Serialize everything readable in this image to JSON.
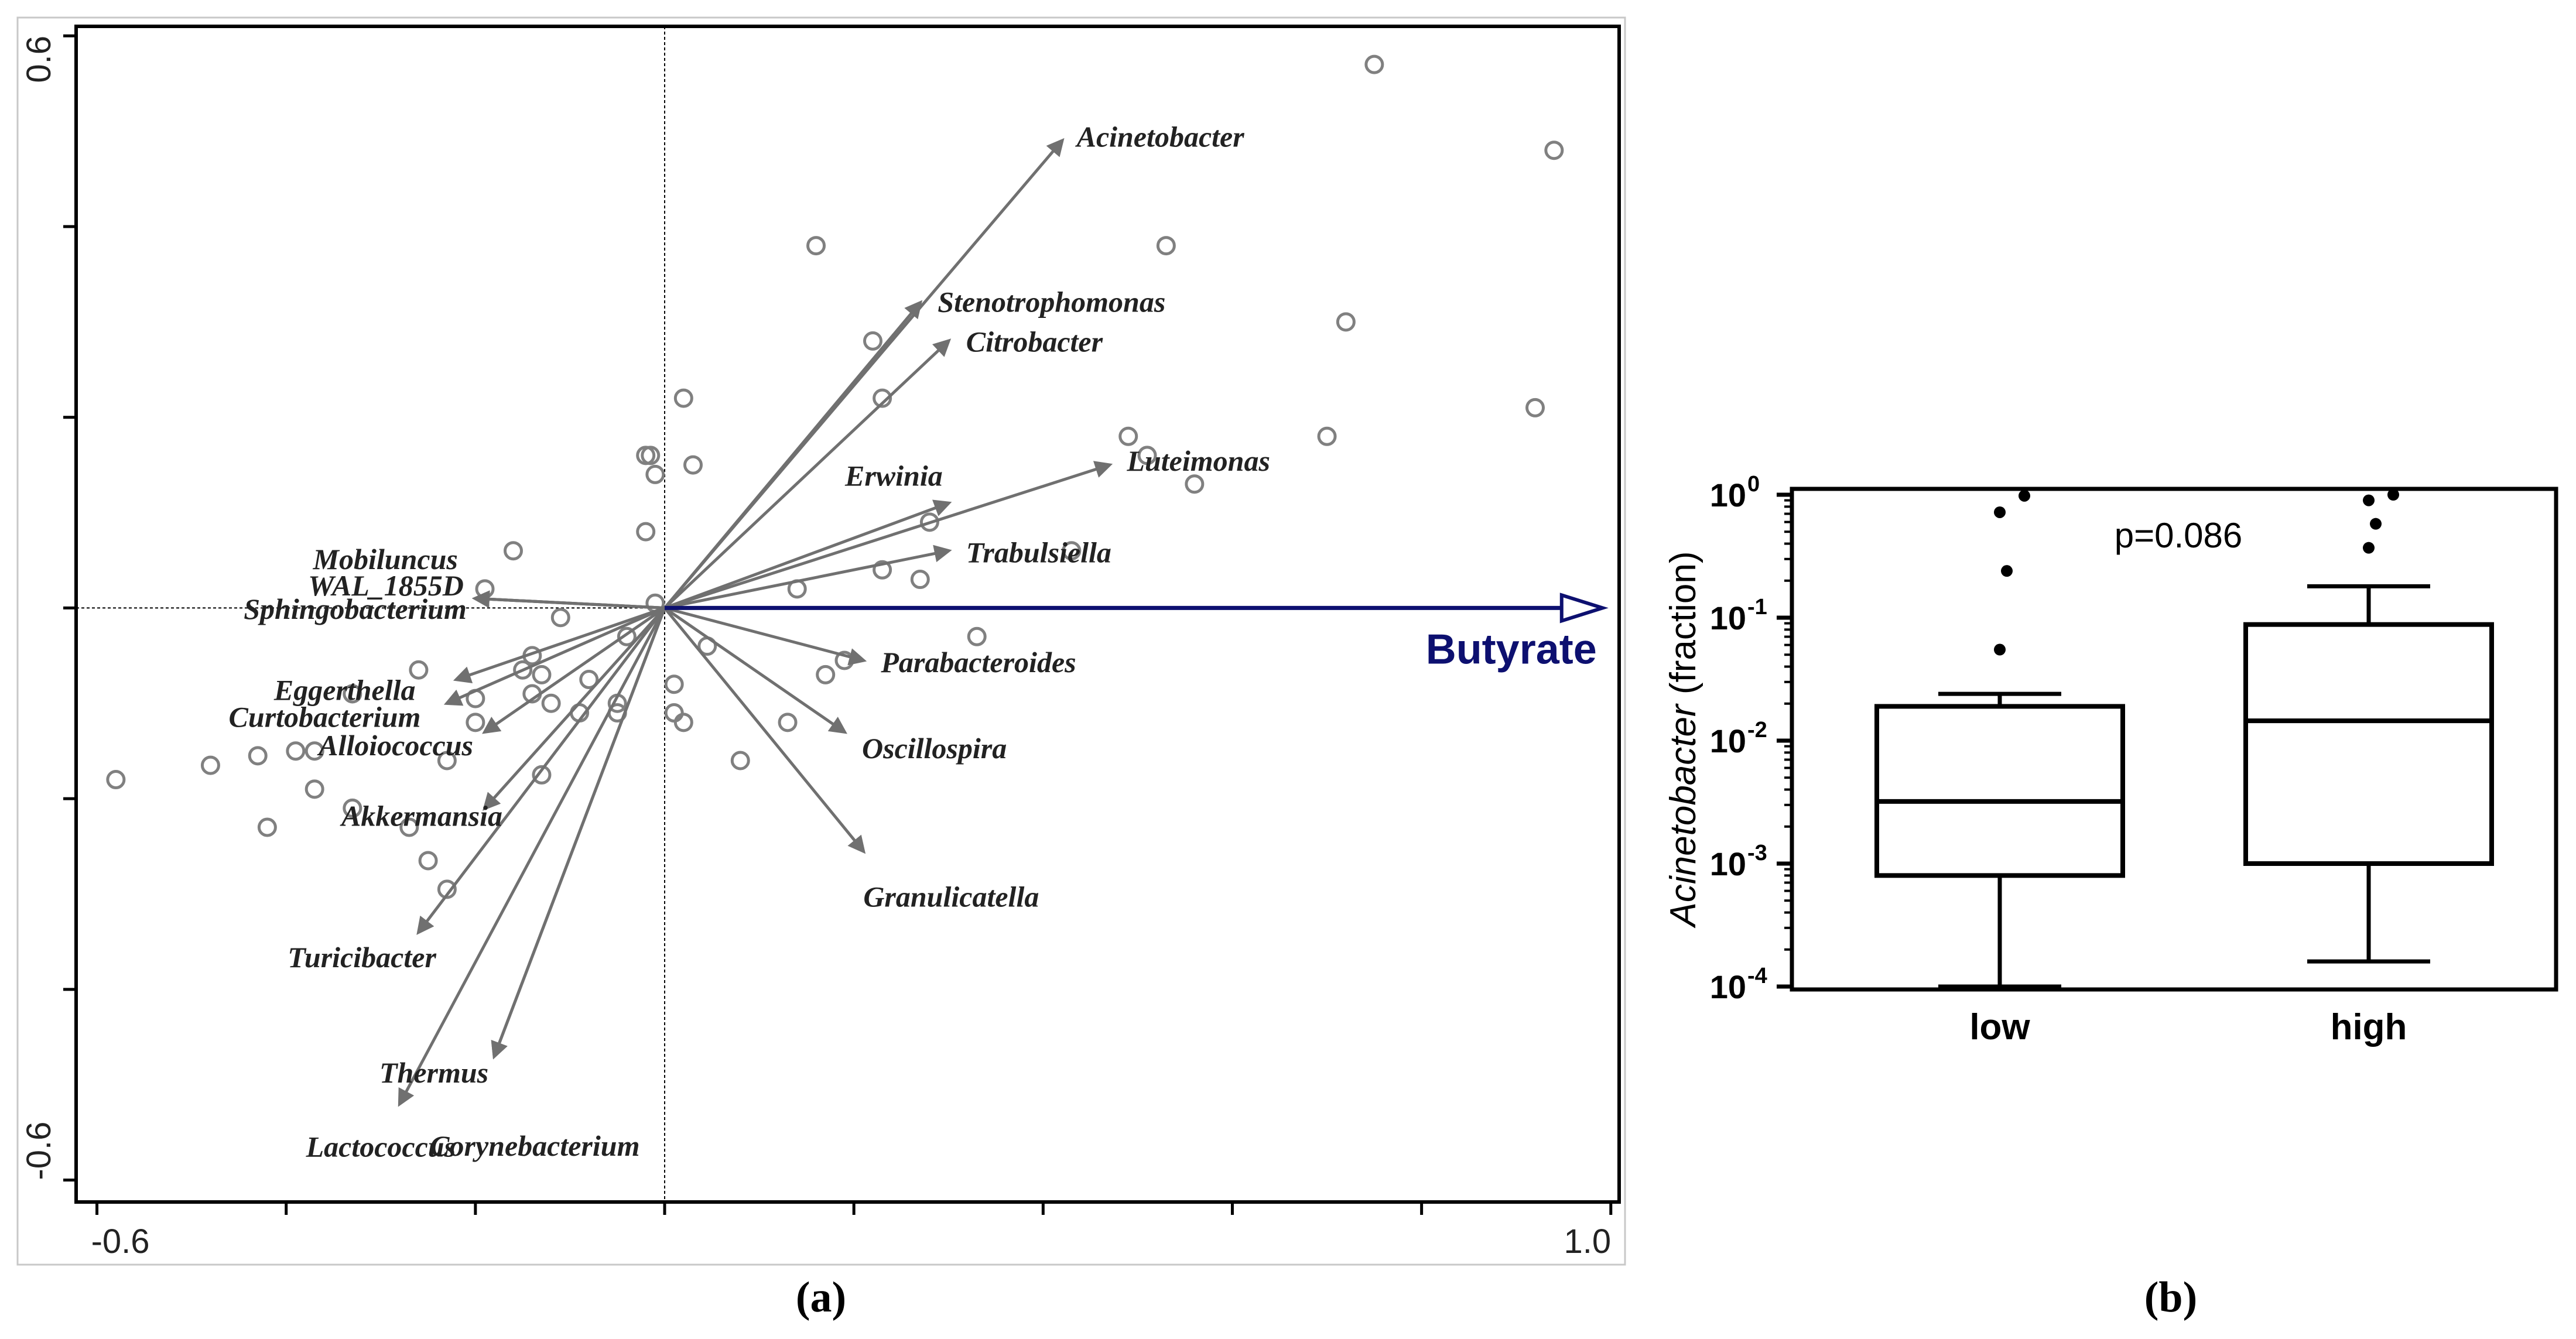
{
  "panel_labels": {
    "a": "(a)",
    "b": "(b)"
  },
  "chart_data": [
    {
      "type": "scatter",
      "subtype": "ordination-biplot",
      "xlim": [
        -0.6,
        1.0
      ],
      "ylim": [
        -0.6,
        0.6
      ],
      "x_tick_labels": [
        "-0.6",
        "1.0"
      ],
      "y_tick_labels": [
        "0.6",
        "-0.6"
      ],
      "environmental_vector": {
        "name": "Butyrate",
        "x": 1.0,
        "y": 0.0,
        "color": "#0d1070"
      },
      "arrow_color": "#707070",
      "species": [
        {
          "name": "Acinetobacter",
          "x": 0.42,
          "y": 0.49
        },
        {
          "name": "Stenotrophomonas",
          "x": 0.27,
          "y": 0.32
        },
        {
          "name": "Citrobacter",
          "x": 0.3,
          "y": 0.28
        },
        {
          "name": "Erwinia",
          "x": 0.3,
          "y": 0.11
        },
        {
          "name": "Luteimonas",
          "x": 0.47,
          "y": 0.15
        },
        {
          "name": "Trabulsiella",
          "x": 0.3,
          "y": 0.06
        },
        {
          "name": "Parabacteroides",
          "x": 0.21,
          "y": -0.055
        },
        {
          "name": "Oscillospira",
          "x": 0.19,
          "y": -0.13
        },
        {
          "name": "Granulicatella",
          "x": 0.21,
          "y": -0.255
        },
        {
          "name": "Mobiluncus",
          "x": -0.2,
          "y": 0.01
        },
        {
          "name": "WAL_1855D",
          "x": -0.2,
          "y": 0.01
        },
        {
          "name": "Sphingobacterium",
          "x": -0.2,
          "y": 0.01
        },
        {
          "name": "Eggerthella",
          "x": -0.22,
          "y": -0.075
        },
        {
          "name": "Curtobacterium",
          "x": -0.23,
          "y": -0.1
        },
        {
          "name": "Alloiococcus",
          "x": -0.19,
          "y": -0.13
        },
        {
          "name": "Akkermansia",
          "x": -0.19,
          "y": -0.21
        },
        {
          "name": "Turicibacter",
          "x": -0.26,
          "y": -0.34
        },
        {
          "name": "Thermus",
          "x": -0.18,
          "y": -0.47
        },
        {
          "name": "Corynebacterium",
          "x": -0.18,
          "y": -0.47
        },
        {
          "name": "Lactococcus",
          "x": -0.28,
          "y": -0.52
        }
      ],
      "samples": [
        [
          0.75,
          0.57
        ],
        [
          0.94,
          0.48
        ],
        [
          0.16,
          0.38
        ],
        [
          0.53,
          0.38
        ],
        [
          0.72,
          0.3
        ],
        [
          0.22,
          0.28
        ],
        [
          0.92,
          0.21
        ],
        [
          0.02,
          0.22
        ],
        [
          0.23,
          0.22
        ],
        [
          0.7,
          0.18
        ],
        [
          0.49,
          0.18
        ],
        [
          0.51,
          0.16
        ],
        [
          -0.02,
          0.16
        ],
        [
          -0.015,
          0.16
        ],
        [
          -0.01,
          0.14
        ],
        [
          0.03,
          0.15
        ],
        [
          0.56,
          0.13
        ],
        [
          0.28,
          0.09
        ],
        [
          0.43,
          0.06
        ],
        [
          -0.02,
          0.08
        ],
        [
          0.23,
          0.04
        ],
        [
          0.27,
          0.03
        ],
        [
          0.14,
          0.02
        ],
        [
          -0.16,
          0.06
        ],
        [
          -0.19,
          0.02
        ],
        [
          -0.01,
          0.005
        ],
        [
          -0.11,
          -0.01
        ],
        [
          -0.04,
          -0.03
        ],
        [
          -0.14,
          -0.05
        ],
        [
          0.045,
          -0.04
        ],
        [
          0.19,
          -0.055
        ],
        [
          0.33,
          -0.03
        ],
        [
          -0.26,
          -0.065
        ],
        [
          -0.13,
          -0.07
        ],
        [
          0.17,
          -0.07
        ],
        [
          -0.15,
          -0.065
        ],
        [
          -0.08,
          -0.075
        ],
        [
          0.01,
          -0.08
        ],
        [
          -0.14,
          -0.09
        ],
        [
          -0.33,
          -0.09
        ],
        [
          -0.2,
          -0.095
        ],
        [
          -0.12,
          -0.1
        ],
        [
          -0.05,
          -0.1
        ],
        [
          -0.05,
          -0.11
        ],
        [
          -0.09,
          -0.11
        ],
        [
          0.01,
          -0.11
        ],
        [
          -0.2,
          -0.12
        ],
        [
          0.02,
          -0.12
        ],
        [
          0.13,
          -0.12
        ],
        [
          -0.37,
          -0.15
        ],
        [
          -0.39,
          -0.15
        ],
        [
          -0.43,
          -0.155
        ],
        [
          -0.48,
          -0.165
        ],
        [
          -0.23,
          -0.16
        ],
        [
          0.08,
          -0.16
        ],
        [
          -0.58,
          -0.18
        ],
        [
          -0.13,
          -0.175
        ],
        [
          -0.37,
          -0.19
        ],
        [
          -0.33,
          -0.21
        ],
        [
          -0.42,
          -0.23
        ],
        [
          -0.27,
          -0.23
        ],
        [
          -0.25,
          -0.265
        ],
        [
          -0.23,
          -0.295
        ]
      ]
    },
    {
      "type": "box",
      "ylabel": "Acinetobacter (fraction)",
      "ylabel_italic_part": "Acinetobacter",
      "ylabel_rest": " (fraction)",
      "yscale": "log",
      "ylim": [
        0.0001,
        1
      ],
      "y_ticks": [
        {
          "value": 1,
          "base": "10",
          "exp": "0"
        },
        {
          "value": 0.1,
          "base": "10",
          "exp": "-1"
        },
        {
          "value": 0.01,
          "base": "10",
          "exp": "-2"
        },
        {
          "value": 0.001,
          "base": "10",
          "exp": "-3"
        },
        {
          "value": 0.0001,
          "base": "10",
          "exp": "-4"
        }
      ],
      "categories": [
        "low",
        "high"
      ],
      "annotation": "p=0.086",
      "boxes": [
        {
          "category": "low",
          "whisker_low": 0.0001,
          "q1": 0.0008,
          "median": 0.0032,
          "q3": 0.019,
          "whisker_high": 0.024,
          "outliers": [
            0.055,
            0.24,
            0.72,
            0.98
          ]
        },
        {
          "category": "high",
          "whisker_low": 0.00016,
          "q1": 0.001,
          "median": 0.0145,
          "q3": 0.088,
          "whisker_high": 0.18,
          "outliers": [
            0.37,
            0.58,
            0.9,
            1.0
          ]
        }
      ]
    }
  ]
}
